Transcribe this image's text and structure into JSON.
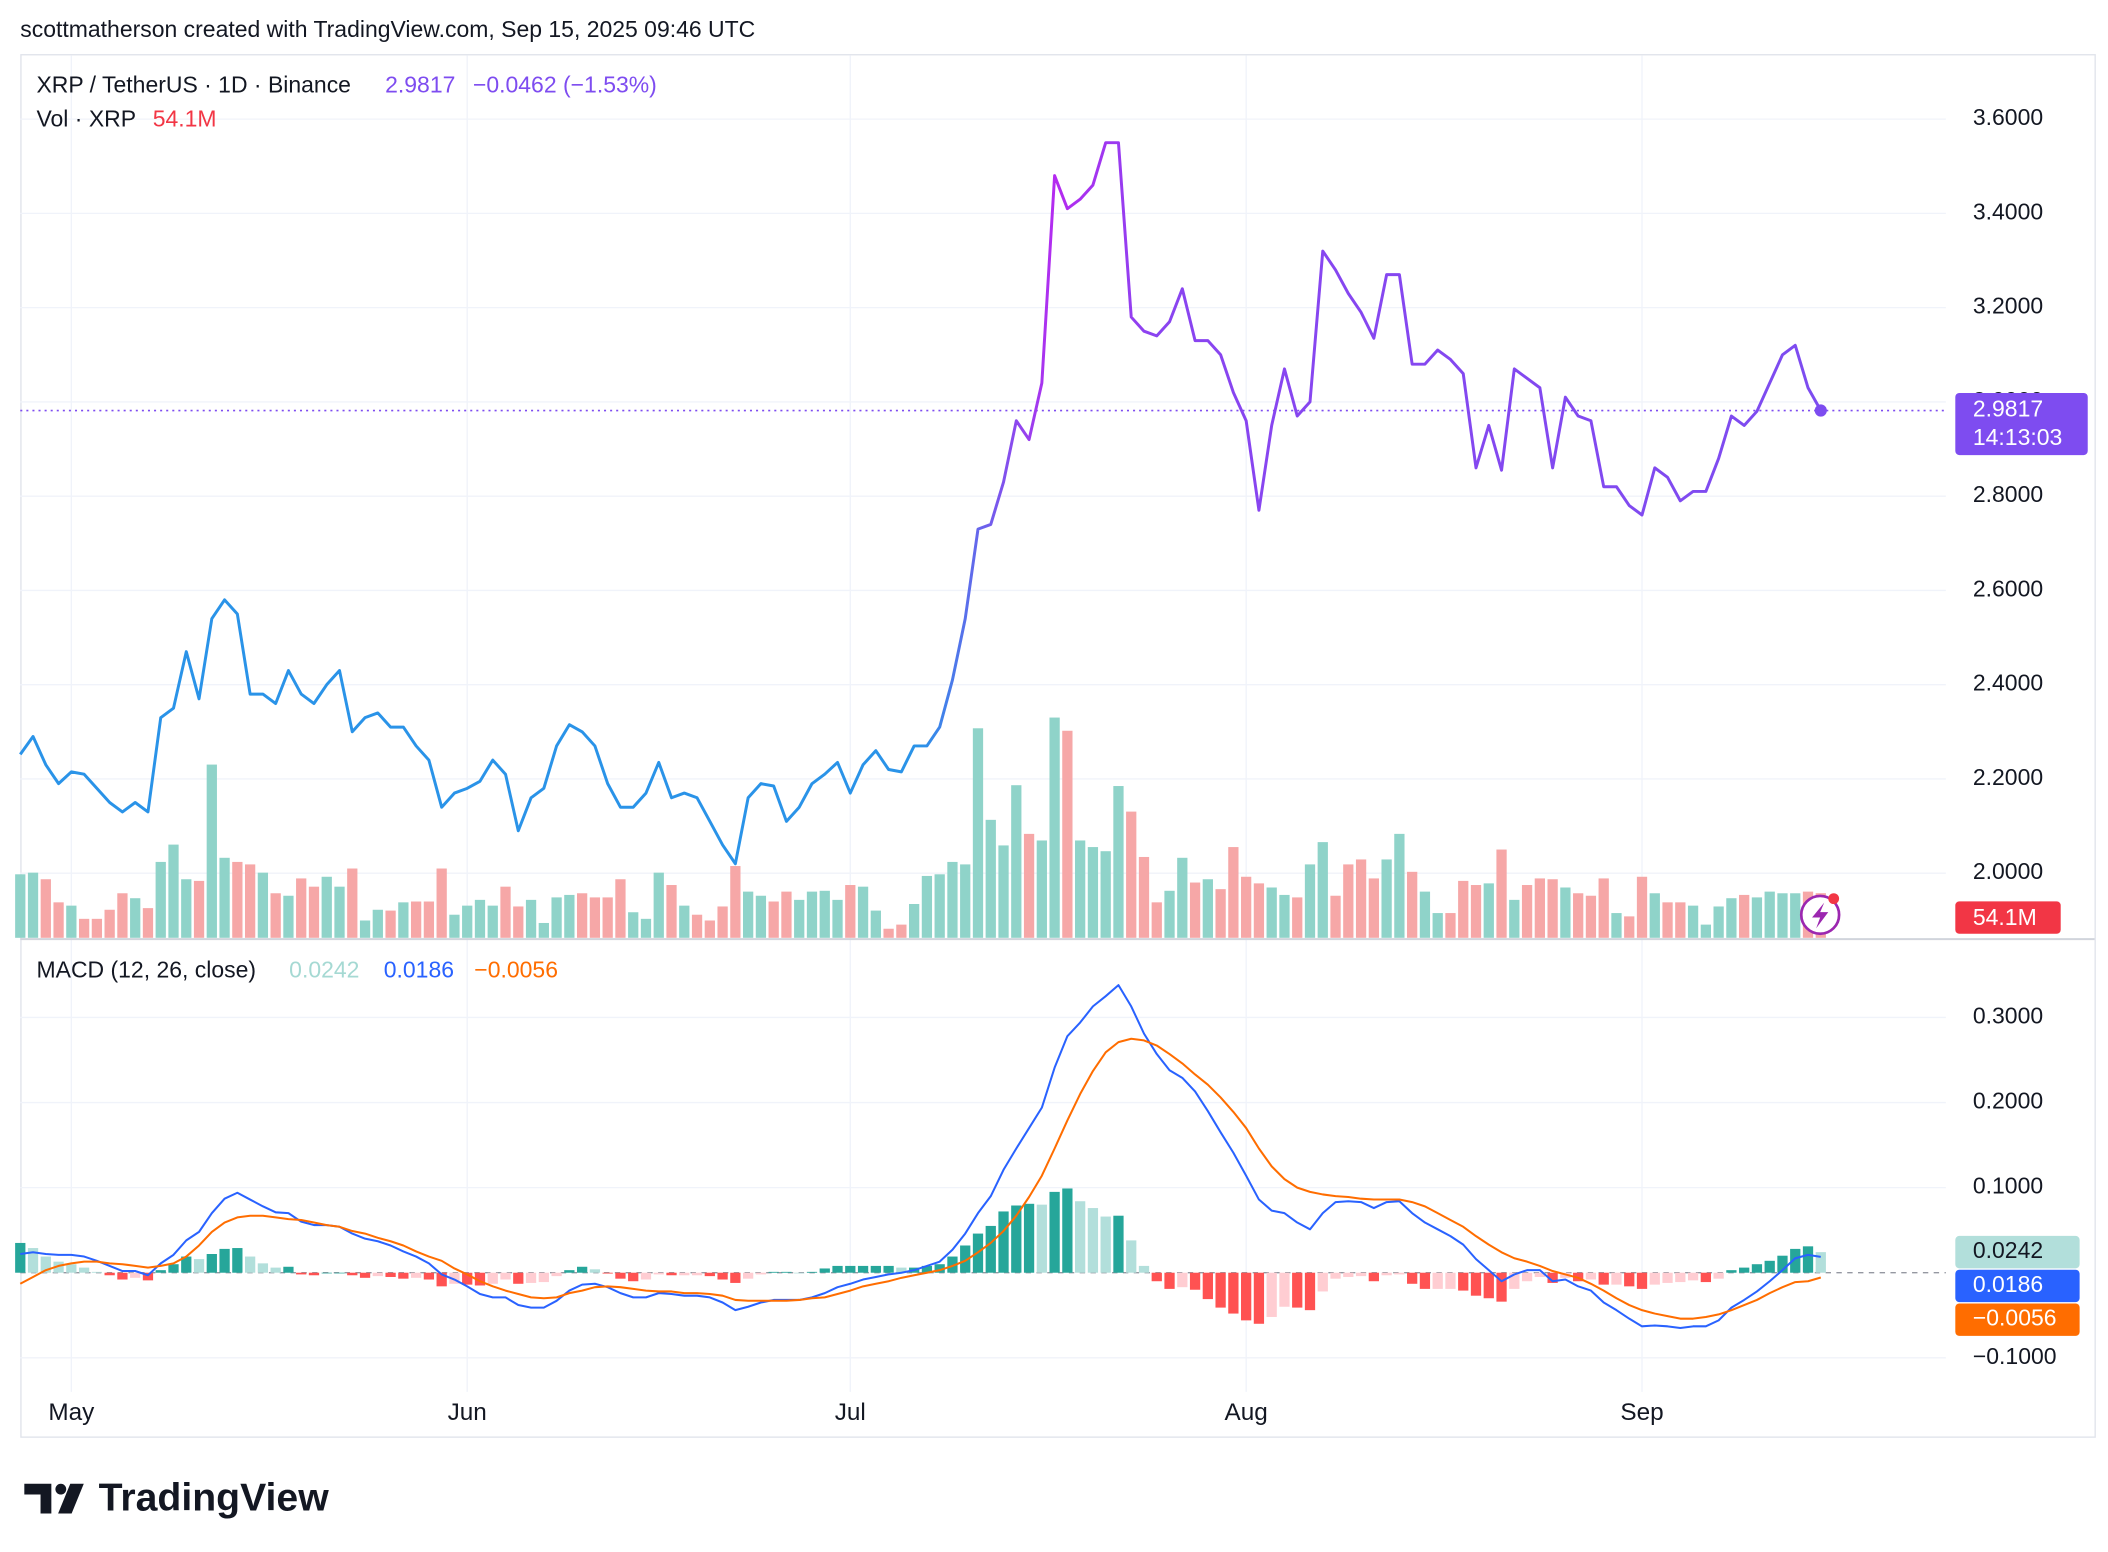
{
  "header": {
    "attribution": "scottmatherson created with TradingView.com, Sep 15, 2025 09:46 UTC"
  },
  "footer": {
    "brand": "TradingView"
  },
  "chart_data": [
    {
      "type": "line",
      "categories": [
        null,
        null,
        null,
        null,
        "May",
        null,
        null,
        null,
        null,
        null,
        null,
        null,
        null,
        null,
        null,
        null,
        null,
        null,
        null,
        null,
        null,
        null,
        null,
        null,
        null,
        null,
        null,
        null,
        null,
        null,
        null,
        null,
        null,
        null,
        null,
        "Jun",
        null,
        null,
        null,
        null,
        null,
        null,
        null,
        null,
        null,
        null,
        null,
        null,
        null,
        null,
        null,
        null,
        null,
        null,
        null,
        null,
        null,
        null,
        null,
        null,
        null,
        null,
        null,
        null,
        null,
        "Jul",
        null,
        null,
        null,
        null,
        null,
        null,
        null,
        null,
        null,
        null,
        null,
        null,
        null,
        null,
        null,
        null,
        null,
        null,
        null,
        null,
        null,
        null,
        null,
        null,
        null,
        null,
        null,
        null,
        null,
        null,
        "Aug",
        null,
        null,
        null,
        null,
        null,
        null,
        null,
        null,
        null,
        null,
        null,
        null,
        null,
        null,
        null,
        null,
        null,
        null,
        null,
        null,
        null,
        null,
        null,
        null,
        null,
        null,
        null,
        null,
        null,
        null,
        "Sep",
        null,
        null,
        null,
        null,
        null,
        null,
        null,
        null,
        null,
        null,
        null,
        null,
        null,
        null
      ],
      "series": [
        {
          "name": "XRP / TetherUS · 1D · Binance",
          "colors": [
            "#2a93e8",
            "#b52af0",
            "#8a44f0",
            "#7d4cf0"
          ],
          "change_label": "−0.0462 (−1.53%)",
          "countdown": "14:13:03",
          "tag_color": "#7e4cf0",
          "values": [
            2.252,
            2.29,
            2.23,
            2.19,
            2.215,
            2.21,
            2.18,
            2.15,
            2.13,
            2.15,
            2.13,
            2.33,
            2.35,
            2.47,
            2.37,
            2.54,
            2.58,
            2.55,
            2.38,
            2.38,
            2.36,
            2.43,
            2.38,
            2.36,
            2.4,
            2.43,
            2.3,
            2.33,
            2.34,
            2.31,
            2.31,
            2.27,
            2.24,
            2.14,
            2.17,
            2.18,
            2.195,
            2.24,
            2.21,
            2.09,
            2.16,
            2.18,
            2.27,
            2.315,
            2.3,
            2.27,
            2.19,
            2.14,
            2.14,
            2.17,
            2.235,
            2.16,
            2.17,
            2.16,
            2.11,
            2.06,
            2.02,
            2.16,
            2.19,
            2.185,
            2.11,
            2.14,
            2.19,
            2.21,
            2.235,
            2.17,
            2.23,
            2.26,
            2.22,
            2.215,
            2.27,
            2.27,
            2.31,
            2.41,
            2.54,
            2.73,
            2.74,
            2.83,
            2.96,
            2.92,
            3.04,
            3.48,
            3.41,
            3.43,
            3.46,
            3.55,
            3.55,
            3.18,
            3.15,
            3.14,
            3.17,
            3.24,
            3.13,
            3.13,
            3.1,
            3.02,
            2.96,
            2.77,
            2.95,
            3.07,
            2.97,
            3.0,
            3.32,
            3.28,
            3.23,
            3.19,
            3.135,
            3.27,
            3.27,
            3.08,
            3.08,
            3.11,
            3.09,
            3.06,
            2.86,
            2.95,
            2.855,
            3.07,
            3.05,
            3.03,
            2.86,
            3.01,
            2.97,
            2.96,
            2.82,
            2.82,
            2.78,
            2.76,
            2.86,
            2.84,
            2.79,
            2.81,
            2.81,
            2.88,
            2.97,
            2.95,
            2.98,
            3.04,
            3.1,
            3.12,
            3.03,
            2.9817
          ]
        },
        {
          "name": "Vol · XRP",
          "type": "bar",
          "up_color": "#8fd3c9",
          "down_color": "#f6a7a7",
          "label_color": "#f23645",
          "last_label": "54.1M",
          "values": [
            77,
            79,
            71,
            43,
            39,
            23,
            23,
            34,
            54,
            48,
            36,
            92,
            113,
            71,
            69,
            210,
            97,
            92,
            89,
            79,
            54,
            51,
            72,
            62,
            74,
            62,
            84,
            21,
            34,
            33,
            43,
            44,
            44,
            84,
            28,
            39,
            46,
            39,
            62,
            38,
            46,
            18,
            49,
            52,
            54,
            49,
            49,
            71,
            31,
            23,
            79,
            64,
            39,
            28,
            21,
            38,
            87,
            56,
            51,
            44,
            56,
            46,
            56,
            57,
            46,
            64,
            62,
            33,
            11,
            16,
            41,
            75,
            77,
            92,
            89,
            254,
            143,
            112,
            185,
            126,
            118,
            267,
            251,
            118,
            110,
            105,
            184,
            153,
            98,
            43,
            57,
            97,
            67,
            71,
            59,
            110,
            74,
            66,
            61,
            52,
            49,
            89,
            116,
            51,
            89,
            95,
            72,
            95,
            126,
            80,
            56,
            30,
            30,
            69,
            64,
            66,
            107,
            46,
            64,
            72,
            71,
            61,
            54,
            51,
            72,
            30,
            26,
            74,
            54,
            43,
            43,
            39,
            16,
            38,
            48,
            52,
            49,
            56,
            54,
            54,
            56,
            54.1
          ]
        }
      ],
      "ylim": [
        1.86,
        3.738
      ],
      "yticks": [
        {
          "value": 2.0,
          "label": "2.0000"
        },
        {
          "value": 2.2,
          "label": "2.2000"
        },
        {
          "value": 2.4,
          "label": "2.4000"
        },
        {
          "value": 2.6,
          "label": "2.6000"
        },
        {
          "value": 2.8,
          "label": "2.8000"
        },
        {
          "value": 3.0,
          "label": "3.0000"
        },
        {
          "value": 3.2,
          "label": "3.2000"
        },
        {
          "value": 3.4,
          "label": "3.4000"
        },
        {
          "value": 3.6,
          "label": "3.6000"
        }
      ],
      "grid": true
    },
    {
      "type": "macd",
      "title": "MACD (12, 26, close)",
      "histogram": {
        "colors": [
          "#26a69a",
          "#b2dfdb",
          "#ff5252",
          "#ffcdd2"
        ],
        "label_color": "#a5d9d3",
        "values": [
          0.035,
          0.029,
          0.019,
          0.013,
          0.01,
          0.006,
          0.001,
          -0.003,
          -0.008,
          -0.006,
          -0.009,
          0.003,
          0.01,
          0.019,
          0.016,
          0.022,
          0.028,
          0.029,
          0.019,
          0.011,
          0.006,
          0.007,
          -0.002,
          -0.003,
          0,
          0,
          -0.003,
          -0.006,
          -0.004,
          -0.005,
          -0.007,
          -0.006,
          -0.008,
          -0.016,
          -0.013,
          -0.014,
          -0.015,
          -0.013,
          -0.008,
          -0.013,
          -0.012,
          -0.011,
          -0.004,
          0.003,
          0.007,
          0.004,
          -0.001,
          -0.007,
          -0.01,
          -0.008,
          -0.002,
          -0.003,
          -0.003,
          -0.003,
          -0.004,
          -0.008,
          -0.012,
          -0.007,
          -0.002,
          0.001,
          0.001,
          0,
          0.001,
          0.005,
          0.008,
          0.008,
          0.008,
          0.008,
          0.008,
          0.006,
          0.006,
          0.008,
          0.01,
          0.019,
          0.032,
          0.046,
          0.055,
          0.072,
          0.079,
          0.081,
          0.08,
          0.095,
          0.099,
          0.084,
          0.076,
          0.066,
          0.067,
          0.038,
          0.008,
          -0.01,
          -0.019,
          -0.017,
          -0.02,
          -0.031,
          -0.041,
          -0.048,
          -0.056,
          -0.06,
          -0.052,
          -0.04,
          -0.041,
          -0.044,
          -0.022,
          -0.007,
          -0.005,
          -0.004,
          -0.01,
          -0.003,
          -0.002,
          -0.013,
          -0.019,
          -0.019,
          -0.019,
          -0.021,
          -0.027,
          -0.03,
          -0.034,
          -0.019,
          -0.01,
          -0.005,
          -0.012,
          -0.006,
          -0.01,
          -0.008,
          -0.014,
          -0.014,
          -0.016,
          -0.019,
          -0.014,
          -0.012,
          -0.011,
          -0.009,
          -0.011,
          -0.007,
          0.003,
          0.006,
          0.01,
          0.014,
          0.02,
          0.028,
          0.031,
          0.0242
        ]
      },
      "macd": {
        "color": "#2962ff",
        "values": [
          0.022,
          0.024,
          0.022,
          0.021,
          0.021,
          0.019,
          0.014,
          0.008,
          0.002,
          0.002,
          -0.003,
          0.011,
          0.021,
          0.038,
          0.048,
          0.07,
          0.087,
          0.094,
          0.086,
          0.078,
          0.071,
          0.07,
          0.06,
          0.056,
          0.056,
          0.054,
          0.046,
          0.04,
          0.037,
          0.032,
          0.025,
          0.019,
          0.011,
          -0.002,
          -0.008,
          -0.016,
          -0.025,
          -0.029,
          -0.029,
          -0.038,
          -0.041,
          -0.041,
          -0.033,
          -0.021,
          -0.014,
          -0.013,
          -0.017,
          -0.024,
          -0.029,
          -0.029,
          -0.024,
          -0.025,
          -0.027,
          -0.027,
          -0.029,
          -0.035,
          -0.044,
          -0.04,
          -0.035,
          -0.032,
          -0.032,
          -0.032,
          -0.029,
          -0.024,
          -0.017,
          -0.013,
          -0.008,
          -0.005,
          -0.002,
          0,
          0.003,
          0.008,
          0.013,
          0.027,
          0.046,
          0.07,
          0.09,
          0.121,
          0.146,
          0.17,
          0.194,
          0.241,
          0.278,
          0.294,
          0.313,
          0.325,
          0.338,
          0.313,
          0.281,
          0.257,
          0.238,
          0.229,
          0.213,
          0.19,
          0.165,
          0.141,
          0.114,
          0.086,
          0.073,
          0.07,
          0.059,
          0.051,
          0.07,
          0.083,
          0.084,
          0.083,
          0.076,
          0.083,
          0.084,
          0.07,
          0.059,
          0.051,
          0.043,
          0.033,
          0.016,
          0.003,
          -0.01,
          -0.002,
          0.003,
          0.003,
          -0.01,
          -0.008,
          -0.016,
          -0.021,
          -0.035,
          -0.044,
          -0.054,
          -0.063,
          -0.062,
          -0.063,
          -0.065,
          -0.063,
          -0.063,
          -0.056,
          -0.041,
          -0.032,
          -0.022,
          -0.01,
          0.003,
          0.017,
          0.021,
          0.0186
        ]
      },
      "signal": {
        "color": "#ff6d00",
        "last_label": "−0.0056",
        "values": [
          -0.013,
          -0.005,
          0.003,
          0.008,
          0.011,
          0.013,
          0.013,
          0.011,
          0.01,
          0.008,
          0.006,
          0.008,
          0.011,
          0.019,
          0.032,
          0.048,
          0.059,
          0.065,
          0.067,
          0.067,
          0.065,
          0.063,
          0.062,
          0.059,
          0.056,
          0.054,
          0.049,
          0.046,
          0.041,
          0.037,
          0.032,
          0.025,
          0.019,
          0.014,
          0.005,
          -0.002,
          -0.01,
          -0.016,
          -0.021,
          -0.025,
          -0.029,
          -0.03,
          -0.029,
          -0.024,
          -0.021,
          -0.017,
          -0.016,
          -0.017,
          -0.019,
          -0.021,
          -0.022,
          -0.022,
          -0.024,
          -0.024,
          -0.025,
          -0.027,
          -0.032,
          -0.033,
          -0.033,
          -0.033,
          -0.033,
          -0.032,
          -0.03,
          -0.029,
          -0.025,
          -0.021,
          -0.016,
          -0.013,
          -0.01,
          -0.006,
          -0.003,
          0,
          0.003,
          0.008,
          0.014,
          0.024,
          0.035,
          0.049,
          0.067,
          0.089,
          0.114,
          0.146,
          0.179,
          0.21,
          0.237,
          0.259,
          0.271,
          0.275,
          0.273,
          0.267,
          0.257,
          0.246,
          0.233,
          0.221,
          0.206,
          0.189,
          0.17,
          0.146,
          0.125,
          0.11,
          0.1,
          0.095,
          0.092,
          0.09,
          0.089,
          0.087,
          0.086,
          0.086,
          0.086,
          0.083,
          0.078,
          0.07,
          0.062,
          0.054,
          0.043,
          0.033,
          0.024,
          0.017,
          0.013,
          0.008,
          0.002,
          -0.002,
          -0.006,
          -0.013,
          -0.021,
          -0.03,
          -0.038,
          -0.044,
          -0.048,
          -0.051,
          -0.054,
          -0.054,
          -0.052,
          -0.049,
          -0.044,
          -0.038,
          -0.032,
          -0.024,
          -0.017,
          -0.011,
          -0.01,
          -0.0056
        ]
      },
      "ylim": [
        -0.14,
        0.392
      ],
      "yticks": [
        {
          "value": -0.1,
          "label": "−0.1000"
        },
        {
          "value": 0.1,
          "label": "0.1000"
        },
        {
          "value": 0.2,
          "label": "0.2000"
        },
        {
          "value": 0.3,
          "label": "0.3000"
        }
      ],
      "grid": true
    }
  ]
}
